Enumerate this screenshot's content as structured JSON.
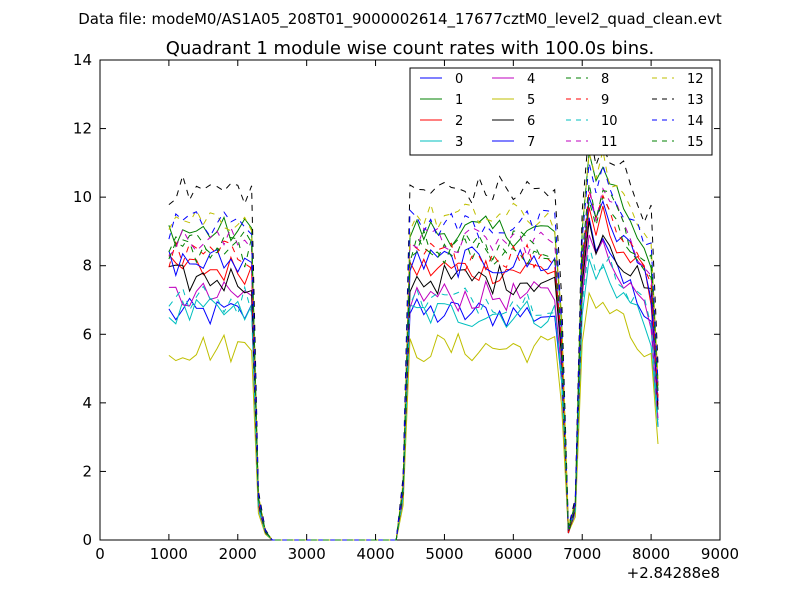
{
  "chart_data": {
    "type": "line",
    "suptitle": "Data file: modeM0/AS1A05_208T01_9000002614_17677cztM0_level2_quad_clean.evt",
    "title": "Quadrant 1 module wise count rates with 100.0s bins.",
    "xlabel": "",
    "ylabel": "",
    "x_offset_label": "+2.84288e8",
    "xlim": [
      0,
      9000
    ],
    "ylim": [
      0,
      14
    ],
    "xticks": [
      0,
      1000,
      2000,
      3000,
      4000,
      5000,
      6000,
      7000,
      8000,
      9000
    ],
    "xtick_labels": [
      "0",
      "1000",
      "2000",
      "3000",
      "4000",
      "5000",
      "6000",
      "7000",
      "8000",
      "9000"
    ],
    "yticks": [
      0,
      2,
      4,
      6,
      8,
      10,
      12,
      14
    ],
    "ytick_labels": [
      "0",
      "2",
      "4",
      "6",
      "8",
      "10",
      "12",
      "14"
    ],
    "legend_position": "top-right",
    "legend_columns": 4,
    "bins": {
      "start": 1000,
      "step": 100,
      "end": 8100,
      "gap_1": [
        2400,
        4300
      ],
      "gap_2": [
        6700,
        6900
      ],
      "note": "Rates near 0 between 2400 and 4300 s; dips near 6800 s"
    },
    "series": [
      {
        "name": "0",
        "color": "#0000ff",
        "dash": "solid",
        "level": 6.6,
        "peak": 9.4
      },
      {
        "name": "1",
        "color": "#008000",
        "dash": "solid",
        "level": 9.0,
        "peak": 11.3
      },
      {
        "name": "2",
        "color": "#ff0000",
        "dash": "solid",
        "level": 7.9,
        "peak": 9.7
      },
      {
        "name": "3",
        "color": "#00bfbf",
        "dash": "solid",
        "level": 6.6,
        "peak": 8.2
      },
      {
        "name": "4",
        "color": "#bf00bf",
        "dash": "solid",
        "level": 7.1,
        "peak": 8.9
      },
      {
        "name": "5",
        "color": "#bfbf00",
        "dash": "solid",
        "level": 5.6,
        "peak": 7.2
      },
      {
        "name": "6",
        "color": "#000000",
        "dash": "solid",
        "level": 7.6,
        "peak": 9.3
      },
      {
        "name": "7",
        "color": "#0000ff",
        "dash": "solid",
        "level": 8.1,
        "peak": 10.0
      },
      {
        "name": "8",
        "color": "#008000",
        "dash": "dashed",
        "level": 8.4,
        "peak": 9.9
      },
      {
        "name": "9",
        "color": "#ff0000",
        "dash": "dashed",
        "level": 8.3,
        "peak": 10.2
      },
      {
        "name": "10",
        "color": "#00bfbf",
        "dash": "dashed",
        "level": 7.0,
        "peak": 8.6
      },
      {
        "name": "11",
        "color": "#bf00bf",
        "dash": "dashed",
        "level": 8.7,
        "peak": 10.3
      },
      {
        "name": "12",
        "color": "#bfbf00",
        "dash": "dashed",
        "level": 9.4,
        "peak": 11.3
      },
      {
        "name": "13",
        "color": "#000000",
        "dash": "dashed",
        "level": 10.2,
        "peak": 12.0
      },
      {
        "name": "14",
        "color": "#0000ff",
        "dash": "dashed",
        "level": 9.2,
        "peak": 11.0
      },
      {
        "name": "15",
        "color": "#008000",
        "dash": "dashed",
        "level": 8.6,
        "peak": 10.4
      }
    ]
  }
}
